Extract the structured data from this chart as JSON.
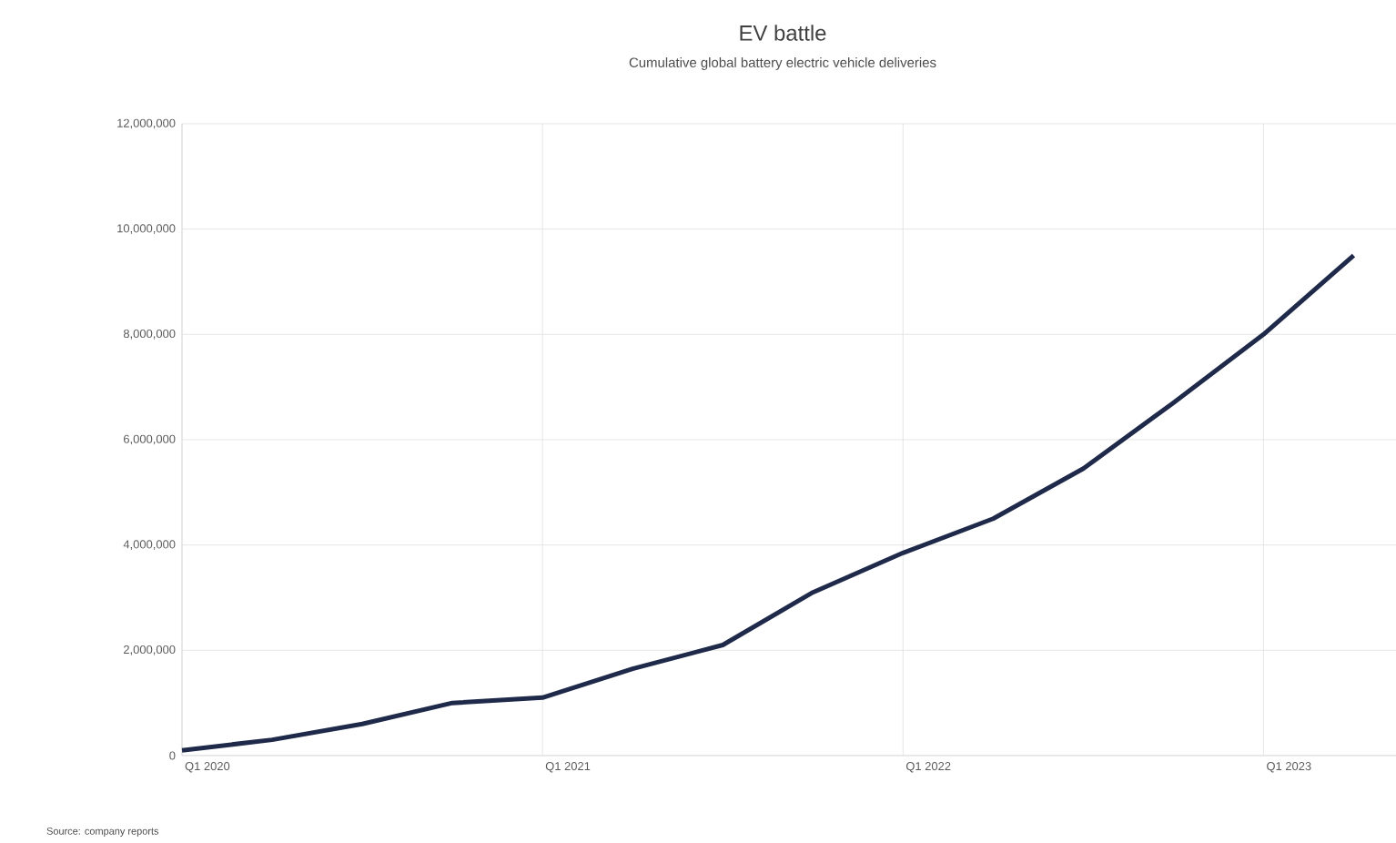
{
  "chart_data": {
    "type": "line",
    "title": "EV battle",
    "subtitle": "Cumulative global battery electric vehicle deliveries",
    "categories": [
      "Q1 2020",
      null,
      null,
      null,
      "Q1 2021",
      null,
      null,
      null,
      "Q1 2022",
      null,
      null,
      null,
      "Q1 2023",
      null
    ],
    "series": [
      {
        "color": "#1f2a4a",
        "values": [
          100000,
          300000,
          600000,
          1000000,
          1100000,
          1650000,
          2100000,
          3100000,
          3850000,
          4500000,
          5450000,
          6700000,
          8000000,
          9500000
        ]
      }
    ],
    "ylim": [
      0,
      12000000
    ],
    "yticks": [
      {
        "value": 0,
        "label": "0"
      },
      {
        "value": 2000000,
        "label": "2,000,000"
      },
      {
        "value": 4000000,
        "label": "4,000,000"
      },
      {
        "value": 6000000,
        "label": "6,000,000"
      },
      {
        "value": 8000000,
        "label": "8,000,000"
      },
      {
        "value": 10000000,
        "label": "10,000,000"
      },
      {
        "value": 12000000,
        "label": "12,000,000"
      }
    ],
    "grid": true,
    "marker": "none",
    "line_style": "solid",
    "annotations": [
      "Source: company reports"
    ]
  }
}
